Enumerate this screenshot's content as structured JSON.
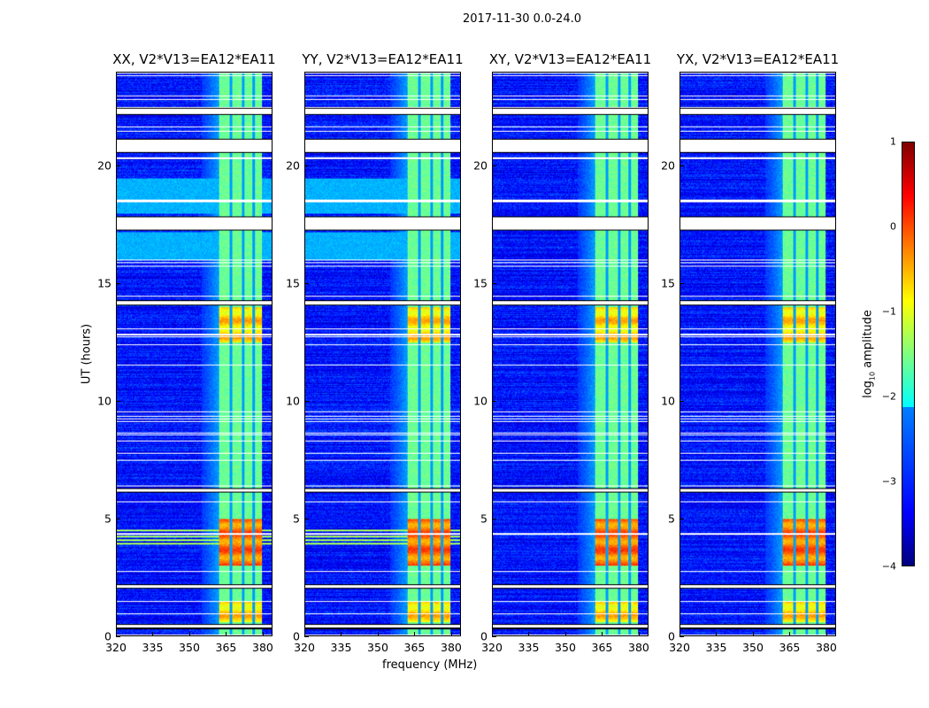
{
  "chart_data": {
    "type": "heatmap",
    "title": "2017-11-30 0.0-24.0",
    "xlabel": "frequency (MHz)",
    "ylabel": "UT (hours)",
    "xlim": [
      320,
      384
    ],
    "ylim": [
      0,
      24
    ],
    "xticks": [
      "320",
      "335",
      "350",
      "365",
      "380"
    ],
    "xtick_values": [
      320,
      335,
      350,
      365,
      380
    ],
    "yticks": [
      "0",
      "5",
      "10",
      "15",
      "20"
    ],
    "ytick_values": [
      0,
      5,
      10,
      15,
      20
    ],
    "panels": [
      {
        "title": "XX, V2*V13=EA12*EA11",
        "broadband_rfi": true
      },
      {
        "title": "YY, V2*V13=EA12*EA11",
        "broadband_rfi": true
      },
      {
        "title": "XY, V2*V13=EA12*EA11",
        "broadband_rfi": false
      },
      {
        "title": "YX, V2*V13=EA12*EA11",
        "broadband_rfi": false
      }
    ],
    "colorbar": {
      "label": "log10 amplitude",
      "label_main": "log",
      "label_sub": "10",
      "label_tail": " amplitude",
      "min": -4,
      "max": 1,
      "ticks": [
        "1",
        "0",
        "−1",
        "−2",
        "−3",
        "−4"
      ],
      "tick_values": [
        1,
        0,
        -1,
        -2,
        -3,
        -4
      ],
      "colormap": "jet"
    },
    "features": {
      "background_level": -3.3,
      "rfi_band_mhz": [
        362,
        380
      ],
      "channel_gaps_mhz": [
        367,
        372,
        376.5
      ],
      "strong_rfi_hours": [
        [
          3,
          5
        ],
        [
          12.5,
          14
        ],
        [
          0.6,
          1.5
        ]
      ],
      "flagged_hours": [
        [
          0.3,
          0.5
        ],
        [
          2.0,
          2.2
        ],
        [
          6.1,
          6.3
        ],
        [
          14.1,
          14.3
        ],
        [
          17.3,
          17.9
        ],
        [
          20.6,
          21.2
        ],
        [
          22.2,
          22.5
        ]
      ]
    }
  }
}
